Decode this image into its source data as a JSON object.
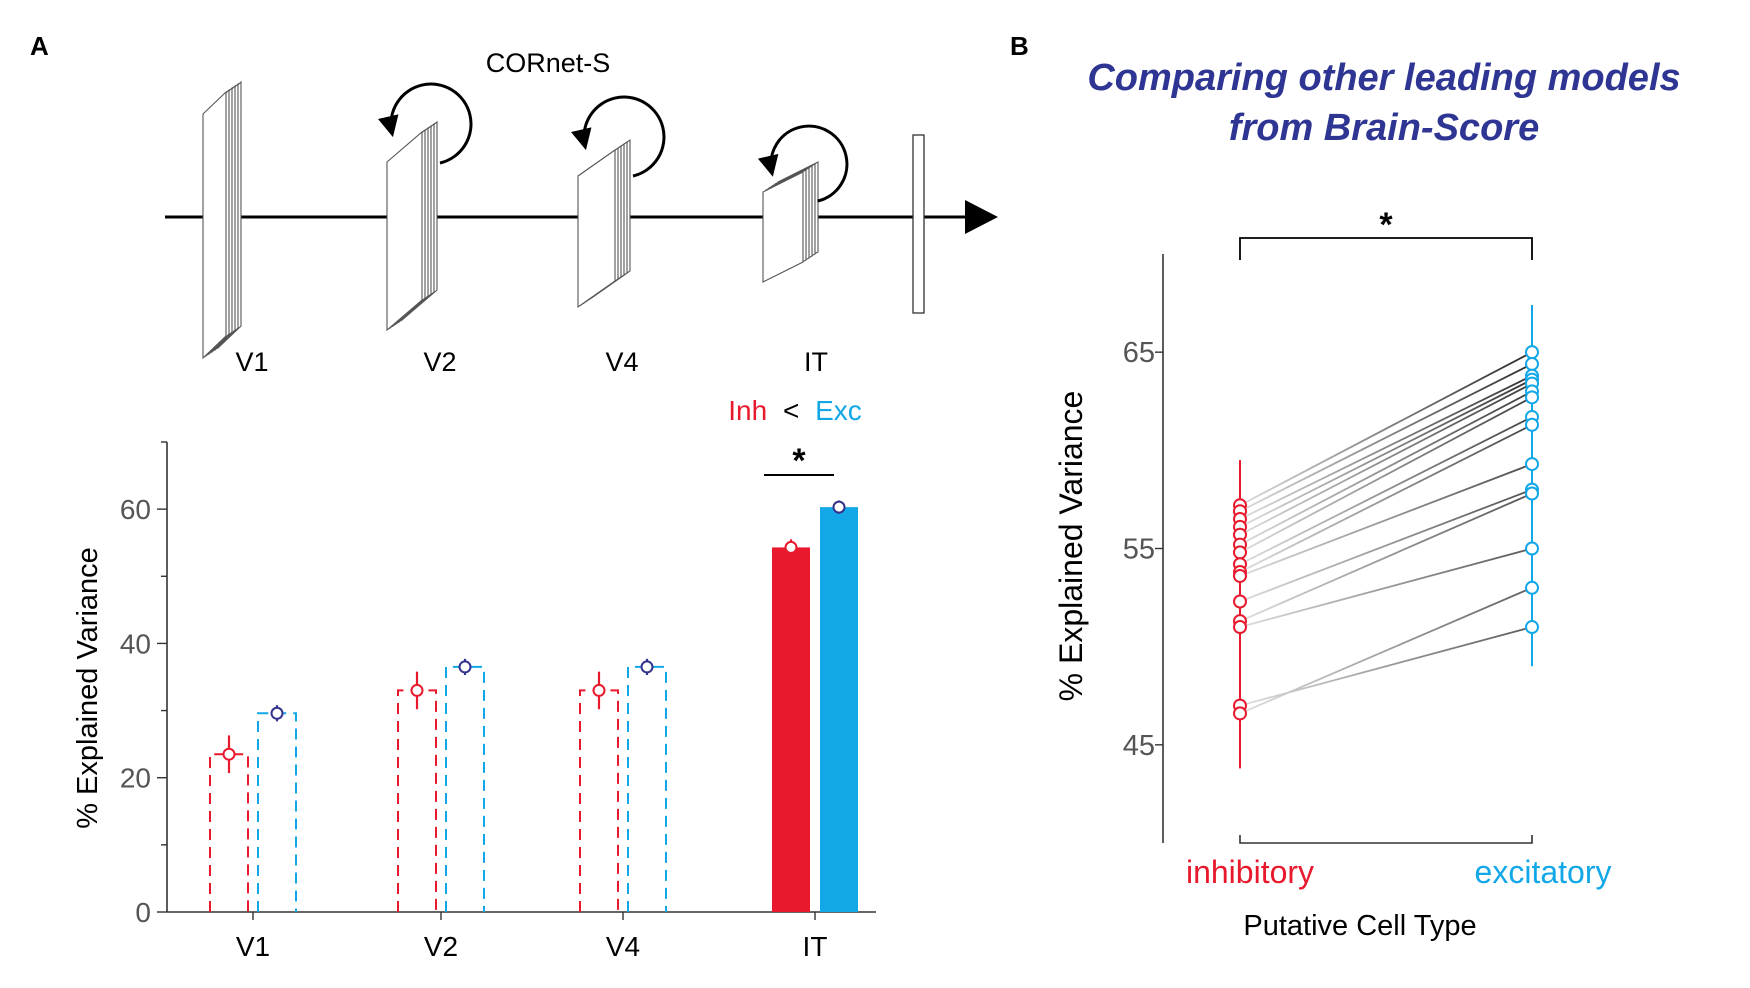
{
  "panels": {
    "a": {
      "label": "A"
    },
    "b": {
      "label": "B"
    }
  },
  "diagram": {
    "title": "CORnet-S",
    "layers": [
      "V1",
      "V2",
      "V4",
      "IT"
    ]
  },
  "colors": {
    "inh": "#e8192c",
    "exc": "#12a7e6",
    "title_b": "#2e3592",
    "marker_exc_a": "#33338f",
    "axis": "#333333"
  },
  "chart_data": [
    {
      "type": "bar",
      "panel": "A",
      "ylabel": "% Explained Variance",
      "ylim": [
        0,
        70
      ],
      "yticks": [
        0,
        20,
        40,
        60
      ],
      "categories": [
        "V1",
        "V2",
        "V4",
        "IT"
      ],
      "series": [
        {
          "key": "inh",
          "values": [
            23.5,
            33,
            33,
            54.3
          ],
          "errors": [
            2.8,
            2.8,
            2.8,
            1.2
          ]
        },
        {
          "key": "exc",
          "values": [
            29.6,
            36.5,
            36.5,
            60.3
          ],
          "errors": [
            1.2,
            1.2,
            1.2,
            1.0
          ]
        }
      ],
      "bar_styles": [
        "dashed",
        "dashed",
        "dashed",
        "filled"
      ],
      "annotation": {
        "inh": "Inh",
        "op": "<",
        "exc": "Exc",
        "significance": "*"
      }
    },
    {
      "type": "line",
      "panel": "B",
      "title_lines": [
        "Comparing other leading models",
        "from Brain-Score"
      ],
      "ylabel": "% Explained Variance",
      "xlabel": "Putative Cell Type",
      "categories": [
        "inhibitory",
        "excitatory"
      ],
      "ylim": [
        40,
        70
      ],
      "yticks": [
        45,
        55,
        65
      ],
      "significance": "*",
      "inh_range": [
        43.8,
        59.5
      ],
      "exc_range": [
        49,
        67.4
      ],
      "pairs": [
        [
          57.2,
          65.0
        ],
        [
          56.9,
          64.4
        ],
        [
          56.5,
          63.8
        ],
        [
          56.1,
          63.6
        ],
        [
          55.7,
          63.4
        ],
        [
          55.2,
          63.0
        ],
        [
          54.8,
          62.7
        ],
        [
          54.2,
          61.7
        ],
        [
          53.8,
          61.3
        ],
        [
          53.6,
          59.3
        ],
        [
          52.3,
          58.0
        ],
        [
          51.3,
          57.8
        ],
        [
          51.0,
          55.0
        ],
        [
          47.0,
          51.0
        ],
        [
          46.6,
          53.0
        ]
      ]
    }
  ]
}
